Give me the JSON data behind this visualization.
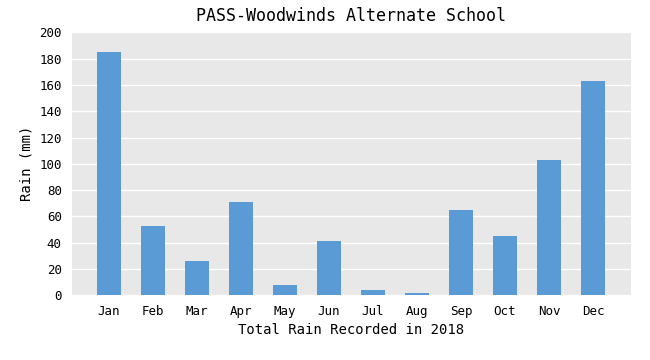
{
  "title": "PASS-Woodwinds Alternate School",
  "xlabel": "Total Rain Recorded in 2018",
  "ylabel": "Rain (mm)",
  "months": [
    "Jan",
    "Feb",
    "Mar",
    "Apr",
    "May",
    "Jun",
    "Jul",
    "Aug",
    "Sep",
    "Oct",
    "Nov",
    "Dec"
  ],
  "values": [
    185,
    53,
    26,
    71,
    8,
    41,
    4,
    2,
    65,
    45,
    103,
    163
  ],
  "bar_color": "#5b9bd5",
  "ylim": [
    0,
    200
  ],
  "yticks": [
    0,
    20,
    40,
    60,
    80,
    100,
    120,
    140,
    160,
    180,
    200
  ],
  "background_color": "#ffffff",
  "plot_bg_color": "#e8e8e8",
  "title_fontsize": 12,
  "xlabel_fontsize": 10,
  "ylabel_fontsize": 10,
  "tick_fontsize": 9,
  "bar_width": 0.55
}
